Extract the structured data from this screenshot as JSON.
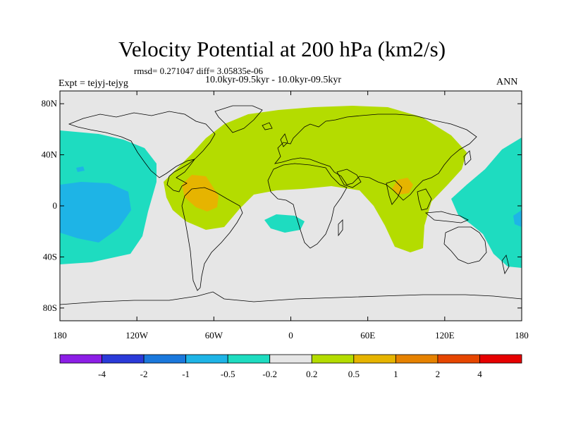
{
  "title": "Velocity Potential at 200 hPa (km2/s)",
  "stats": "rmsd= 0.271047 diff= 3.05835e-06",
  "period": "10.0kyr-09.5kyr - 10.0kyr-09.5kyr",
  "expt": "Expt = tejyj-tejyg",
  "season": "ANN",
  "map": {
    "lat_labels": [
      "80N",
      "40N",
      "0",
      "40S",
      "80S"
    ],
    "lat_values": [
      80,
      40,
      0,
      -40,
      -80
    ],
    "lon_labels": [
      "180",
      "120W",
      "60W",
      "0",
      "60E",
      "120E",
      "180"
    ],
    "lon_values": [
      -180,
      -120,
      -60,
      0,
      60,
      120,
      180
    ],
    "lat_range": [
      -90,
      90
    ],
    "lon_range": [
      -180,
      180
    ],
    "background_color": "#e6e6e6"
  },
  "colorbar": {
    "labels": [
      "-4",
      "-2",
      "-1",
      "-0.5",
      "-0.2",
      "0.2",
      "0.5",
      "1",
      "2",
      "4"
    ],
    "colors": [
      "#8c1ee6",
      "#2a3ad8",
      "#1a78dc",
      "#1eb4e6",
      "#1edcc0",
      "#e6e6e6",
      "#b4dc00",
      "#e6b400",
      "#e68200",
      "#e64600",
      "#e60000"
    ]
  }
}
